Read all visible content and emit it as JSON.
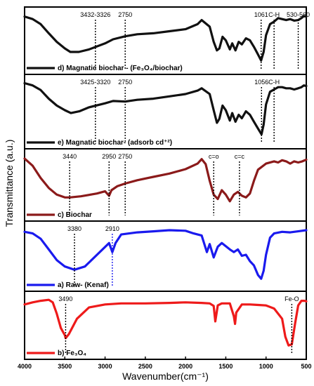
{
  "chart_data": {
    "type": "line",
    "xlabel": "Wavenumber(cm⁻¹)",
    "ylabel": "Transmittance (a.u.)",
    "xlim": [
      4000,
      500
    ],
    "x_ticks": [
      "4000",
      "3500",
      "3000",
      "2500",
      "2000",
      "1500",
      "1000",
      "500"
    ],
    "x_tick_values": [
      4000,
      3500,
      3000,
      2500,
      2000,
      1500,
      1000,
      500
    ],
    "panels": [
      {
        "legend": "d) Magnatic biochar - (Fe₃O₄/biochar)",
        "color": "#111111",
        "x": [
          4000,
          3900,
          3800,
          3700,
          3600,
          3500,
          3432,
          3326,
          3200,
          3000,
          2900,
          2750,
          2600,
          2400,
          2200,
          2000,
          1850,
          1800,
          1700,
          1650,
          1610,
          1580,
          1540,
          1500,
          1450,
          1420,
          1380,
          1340,
          1300,
          1250,
          1200,
          1150,
          1100,
          1061,
          1030,
          1000,
          950,
          900,
          850,
          800,
          750,
          700,
          650,
          600,
          560,
          530,
          500
        ],
        "y": [
          0.95,
          0.9,
          0.8,
          0.62,
          0.45,
          0.32,
          0.25,
          0.25,
          0.3,
          0.42,
          0.5,
          0.56,
          0.6,
          0.62,
          0.66,
          0.7,
          0.8,
          0.88,
          0.75,
          0.45,
          0.28,
          0.32,
          0.55,
          0.48,
          0.3,
          0.42,
          0.28,
          0.45,
          0.4,
          0.52,
          0.48,
          0.35,
          0.2,
          0.08,
          0.25,
          0.58,
          0.8,
          0.85,
          0.92,
          0.9,
          0.88,
          0.9,
          0.87,
          0.88,
          0.92,
          0.96,
          0.95
        ]
      },
      {
        "legend": "e) Magnatic biochar- (adsorb cd⁺²)",
        "color": "#111111",
        "x": [
          4000,
          3900,
          3800,
          3700,
          3600,
          3500,
          3425,
          3320,
          3200,
          3000,
          2900,
          2750,
          2600,
          2400,
          2200,
          2000,
          1850,
          1800,
          1700,
          1650,
          1610,
          1580,
          1540,
          1500,
          1450,
          1420,
          1380,
          1340,
          1300,
          1250,
          1200,
          1150,
          1100,
          1056,
          1030,
          1000,
          950,
          900,
          850,
          800,
          750,
          700,
          650,
          600,
          560,
          530,
          500
        ],
        "y": [
          0.97,
          0.93,
          0.85,
          0.7,
          0.58,
          0.5,
          0.45,
          0.48,
          0.55,
          0.62,
          0.66,
          0.65,
          0.68,
          0.7,
          0.74,
          0.78,
          0.84,
          0.88,
          0.78,
          0.5,
          0.28,
          0.35,
          0.58,
          0.5,
          0.32,
          0.45,
          0.3,
          0.42,
          0.36,
          0.48,
          0.42,
          0.3,
          0.18,
          0.08,
          0.25,
          0.6,
          0.82,
          0.86,
          0.9,
          0.9,
          0.88,
          0.88,
          0.86,
          0.88,
          0.9,
          0.93,
          0.92
        ]
      },
      {
        "legend": "c) Biochar",
        "color": "#8b1a1a",
        "x": [
          4000,
          3900,
          3800,
          3700,
          3600,
          3500,
          3440,
          3300,
          3100,
          3000,
          2950,
          2920,
          2850,
          2750,
          2600,
          2400,
          2200,
          2000,
          1850,
          1800,
          1750,
          1700,
          1650,
          1600,
          1550,
          1500,
          1450,
          1400,
          1350,
          1300,
          1250,
          1200,
          1150,
          1100,
          1000,
          900,
          850,
          800,
          750,
          700,
          650,
          600,
          550,
          500
        ],
        "y": [
          0.95,
          0.82,
          0.6,
          0.42,
          0.3,
          0.25,
          0.25,
          0.27,
          0.32,
          0.36,
          0.28,
          0.38,
          0.45,
          0.5,
          0.56,
          0.62,
          0.68,
          0.76,
          0.86,
          0.94,
          0.85,
          0.55,
          0.3,
          0.22,
          0.38,
          0.3,
          0.18,
          0.3,
          0.35,
          0.28,
          0.25,
          0.32,
          0.55,
          0.75,
          0.86,
          0.9,
          0.88,
          0.92,
          0.9,
          0.86,
          0.9,
          0.88,
          0.9,
          0.93
        ]
      },
      {
        "legend": "a) Raw- (Kenaf)",
        "color": "#1a1aee",
        "x": [
          4000,
          3900,
          3800,
          3700,
          3600,
          3500,
          3380,
          3250,
          3100,
          2950,
          2910,
          2870,
          2800,
          2600,
          2400,
          2200,
          2000,
          1900,
          1800,
          1735,
          1700,
          1650,
          1600,
          1550,
          1500,
          1450,
          1400,
          1350,
          1300,
          1250,
          1200,
          1150,
          1100,
          1060,
          1030,
          1000,
          950,
          900,
          800,
          700,
          600,
          500
        ],
        "y": [
          0.93,
          0.9,
          0.8,
          0.6,
          0.4,
          0.28,
          0.22,
          0.28,
          0.5,
          0.72,
          0.55,
          0.72,
          0.88,
          0.92,
          0.94,
          0.96,
          0.95,
          0.9,
          0.86,
          0.55,
          0.7,
          0.45,
          0.65,
          0.72,
          0.66,
          0.6,
          0.55,
          0.6,
          0.48,
          0.5,
          0.38,
          0.3,
          0.12,
          0.05,
          0.2,
          0.5,
          0.82,
          0.9,
          0.93,
          0.92,
          0.94,
          0.96
        ]
      },
      {
        "legend": "b) Fe₃O₄",
        "color": "#ee1a1a",
        "x": [
          4000,
          3900,
          3800,
          3700,
          3650,
          3600,
          3550,
          3500,
          3490,
          3450,
          3350,
          3200,
          3000,
          2800,
          2500,
          2200,
          2000,
          1800,
          1700,
          1650,
          1630,
          1600,
          1550,
          1500,
          1450,
          1400,
          1385,
          1370,
          1300,
          1200,
          1100,
          1000,
          900,
          800,
          760,
          720,
          680,
          640,
          600,
          560,
          520,
          500
        ],
        "y": [
          0.88,
          0.92,
          0.95,
          0.97,
          0.92,
          0.7,
          0.42,
          0.28,
          0.22,
          0.3,
          0.6,
          0.82,
          0.88,
          0.9,
          0.9,
          0.91,
          0.92,
          0.91,
          0.9,
          0.85,
          0.55,
          0.86,
          0.9,
          0.9,
          0.9,
          0.65,
          0.5,
          0.72,
          0.88,
          0.88,
          0.87,
          0.86,
          0.8,
          0.6,
          0.25,
          0.08,
          0.1,
          0.5,
          0.86,
          0.95,
          0.95,
          0.94
        ]
      }
    ],
    "annotations": [
      {
        "panel": 0,
        "text": "3432-3326",
        "x": 3120
      },
      {
        "panel": 0,
        "text": "2750",
        "x": 2750
      },
      {
        "panel": 0,
        "text": "C-H",
        "x": 900
      },
      {
        "panel": 0,
        "text": "1061",
        "x": 1061
      },
      {
        "panel": 0,
        "text": "530-560",
        "x": 600
      },
      {
        "panel": 1,
        "text": "3425-3320",
        "x": 3120
      },
      {
        "panel": 1,
        "text": "2750",
        "x": 2750
      },
      {
        "panel": 1,
        "text": "C-H",
        "x": 900
      },
      {
        "panel": 1,
        "text": "1056",
        "x": 1056
      },
      {
        "panel": 2,
        "text": "c=o",
        "x": 1650
      },
      {
        "panel": 2,
        "text": "c=c",
        "x": 1330
      },
      {
        "panel": 2,
        "text": "2950",
        "x": 2950
      },
      {
        "panel": 2,
        "text": "3440",
        "x": 3440
      },
      {
        "panel": 2,
        "text": "2750",
        "x": 2750
      },
      {
        "panel": 3,
        "text": "3380",
        "x": 3380
      },
      {
        "panel": 3,
        "text": "2910",
        "x": 2910
      },
      {
        "panel": 4,
        "text": "3490",
        "x": 3490
      },
      {
        "panel": 4,
        "text": "Fe-O",
        "x": 680
      }
    ]
  }
}
